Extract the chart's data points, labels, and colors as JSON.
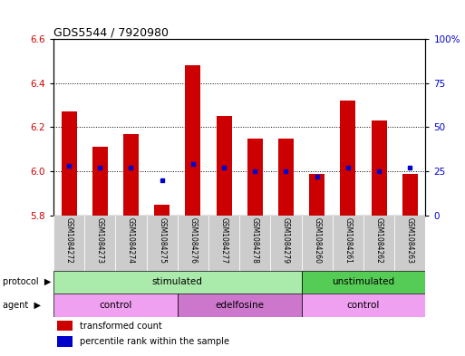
{
  "title": "GDS5544 / 7920980",
  "samples": [
    "GSM1084272",
    "GSM1084273",
    "GSM1084274",
    "GSM1084275",
    "GSM1084276",
    "GSM1084277",
    "GSM1084278",
    "GSM1084279",
    "GSM1084260",
    "GSM1084261",
    "GSM1084262",
    "GSM1084263"
  ],
  "transformed_count": [
    6.27,
    6.11,
    6.17,
    5.85,
    6.48,
    6.25,
    6.15,
    6.15,
    5.99,
    6.32,
    6.23,
    5.99
  ],
  "percentile_rank": [
    28,
    27,
    27,
    20,
    29,
    27,
    25,
    25,
    22,
    27,
    25,
    27
  ],
  "ylim_left": [
    5.8,
    6.6
  ],
  "ylim_right": [
    0,
    100
  ],
  "yticks_left": [
    5.8,
    6.0,
    6.2,
    6.4,
    6.6
  ],
  "yticks_right": [
    0,
    25,
    50,
    75,
    100
  ],
  "ytick_labels_right": [
    "0",
    "25",
    "50",
    "75",
    "100%"
  ],
  "bar_color": "#cc0000",
  "dot_color": "#0000cc",
  "bar_width": 0.5,
  "bar_bottom": 5.8,
  "protocol_groups": [
    {
      "label": "stimulated",
      "start": 0,
      "end": 8,
      "color": "#aaeaaa"
    },
    {
      "label": "unstimulated",
      "start": 8,
      "end": 12,
      "color": "#55cc55"
    }
  ],
  "agent_groups": [
    {
      "label": "control",
      "start": 0,
      "end": 4,
      "color": "#f0a0f0"
    },
    {
      "label": "edelfosine",
      "start": 4,
      "end": 8,
      "color": "#cc77cc"
    },
    {
      "label": "control",
      "start": 8,
      "end": 12,
      "color": "#f0a0f0"
    }
  ],
  "legend_red_label": "transformed count",
  "legend_blue_label": "percentile rank within the sample",
  "protocol_label": "protocol",
  "agent_label": "agent",
  "bg_color": "#ffffff",
  "axis_color_left": "#cc0000",
  "axis_color_right": "#0000cc",
  "grid_color": "#000000",
  "sample_bg_color": "#cccccc"
}
